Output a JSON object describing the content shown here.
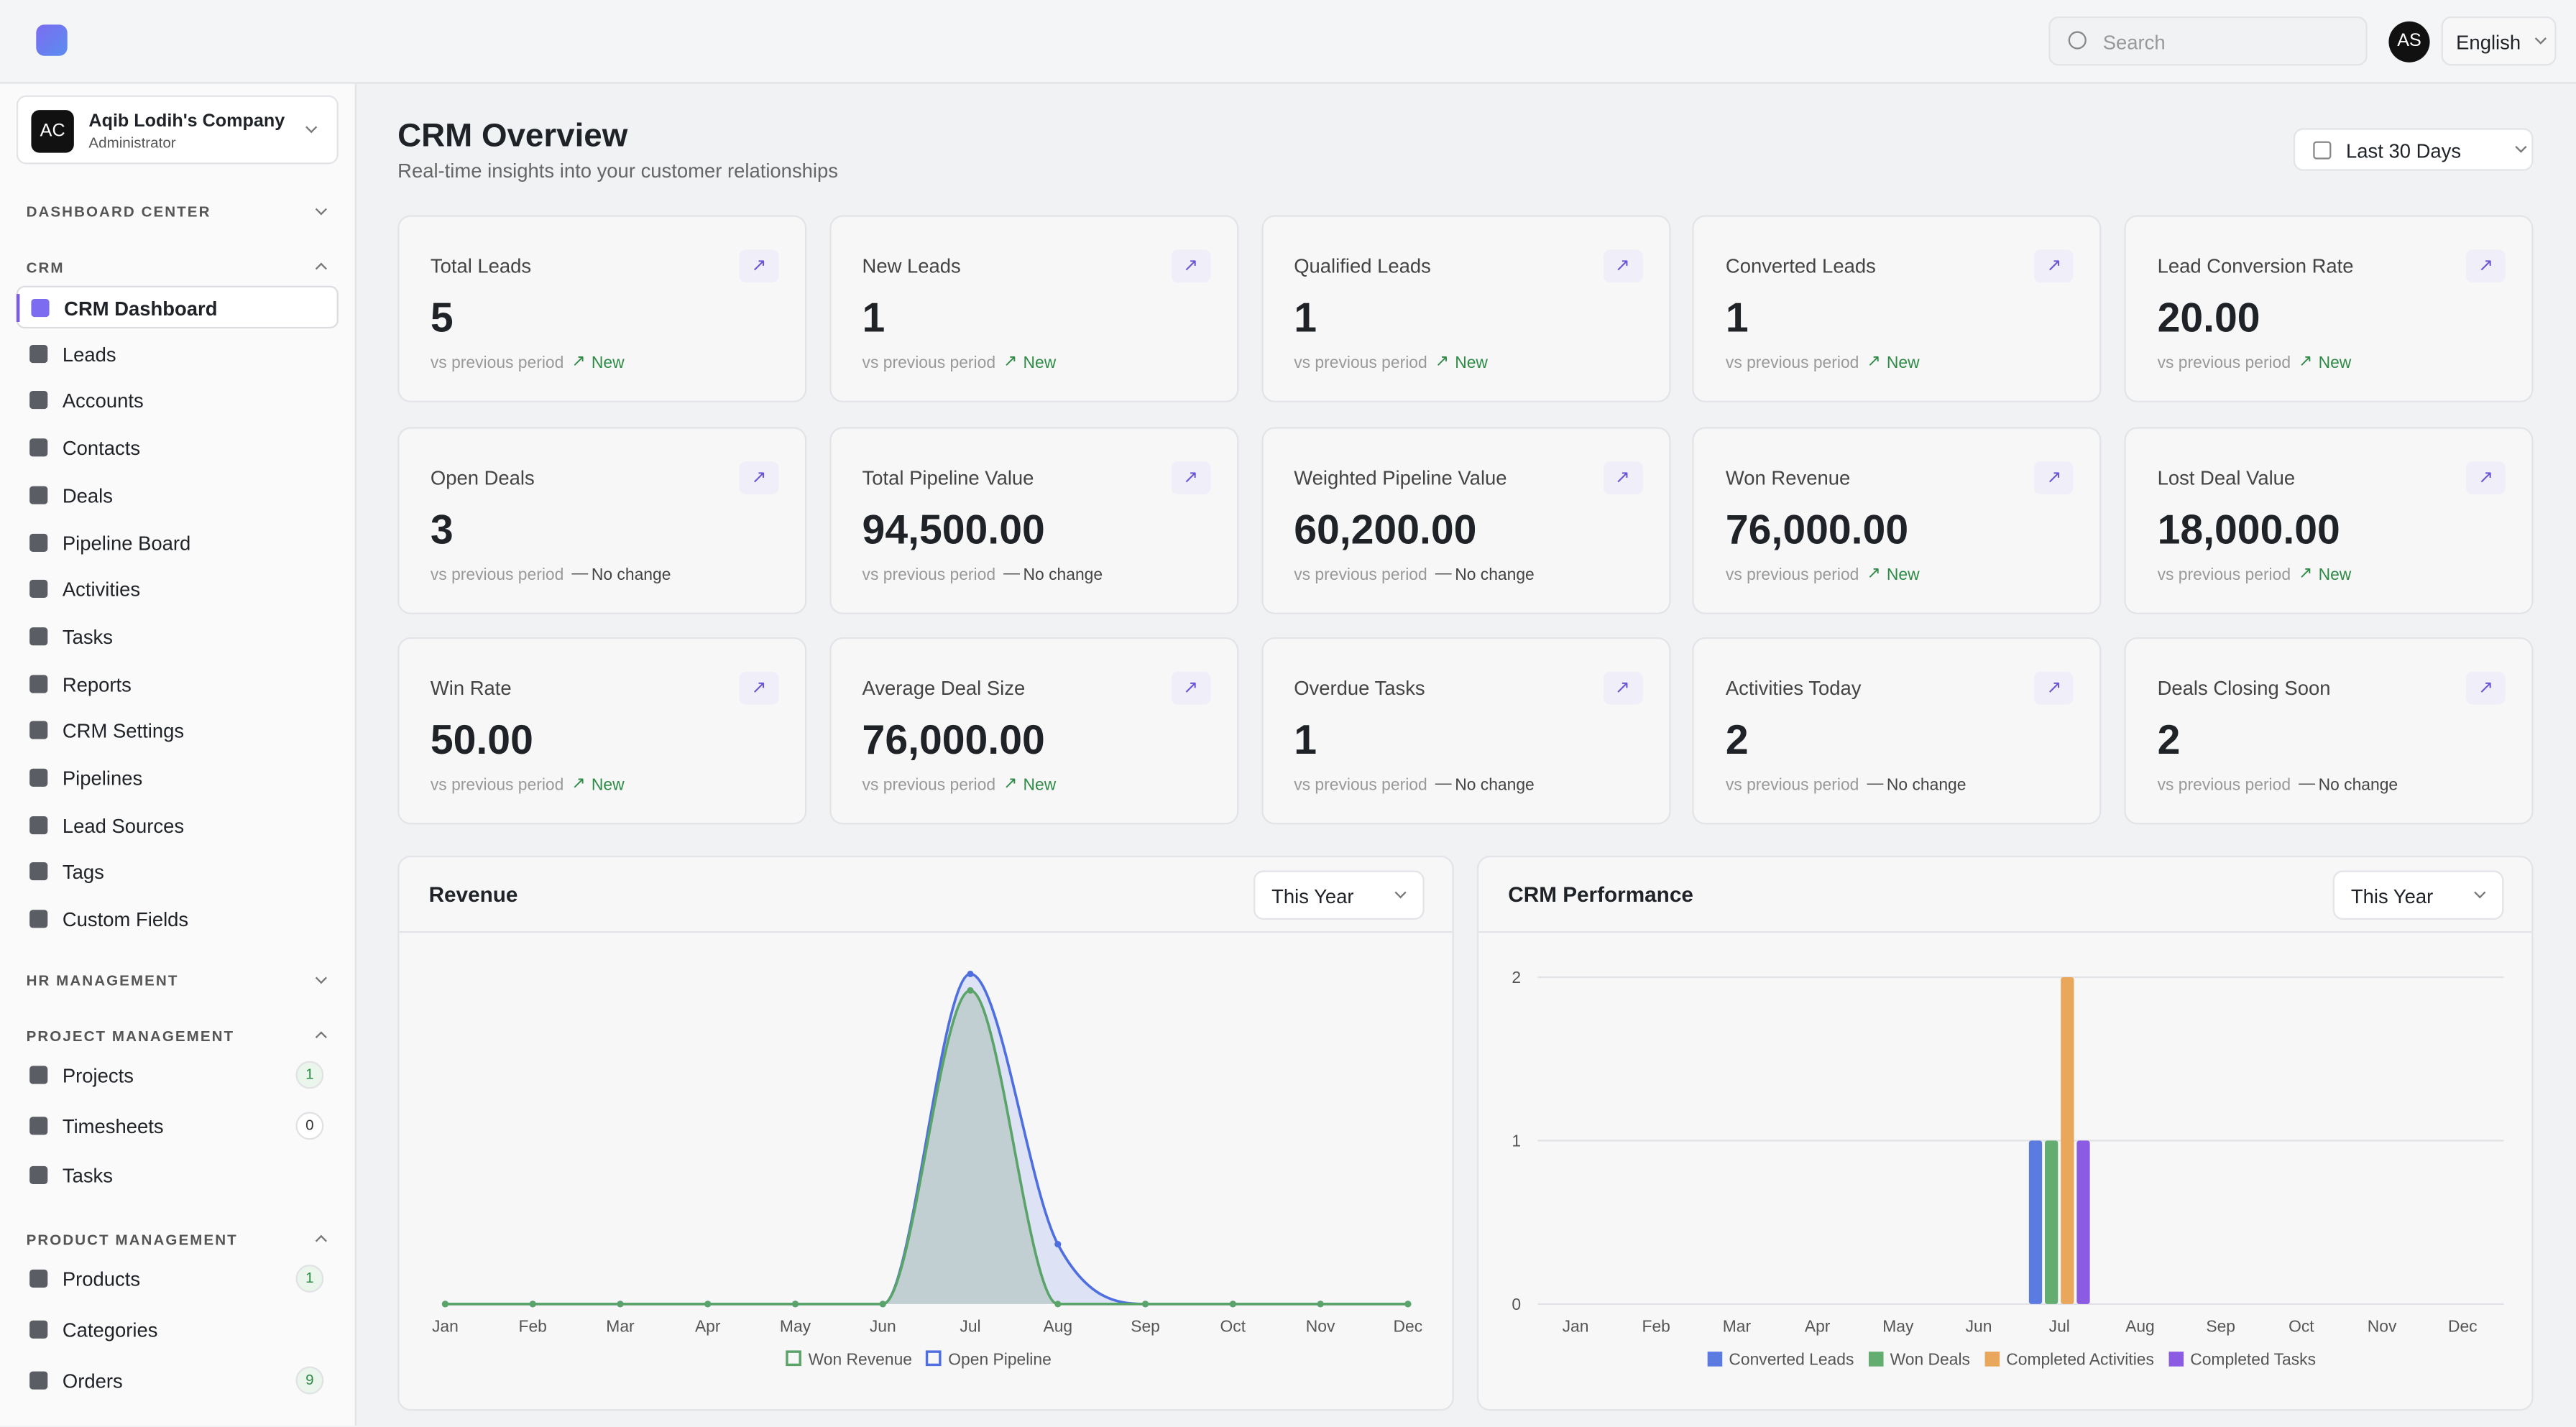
{
  "header": {
    "search_placeholder": "Search",
    "avatar": "AS",
    "language": "English"
  },
  "sidebar": {
    "company": {
      "initials": "AC",
      "name": "Aqib Lodih's Company",
      "role": "Administrator"
    },
    "sections": [
      {
        "title": "DASHBOARD CENTER",
        "items": []
      },
      {
        "title": "CRM",
        "items": [
          {
            "label": "CRM Dashboard",
            "active": true
          },
          {
            "label": "Leads"
          },
          {
            "label": "Accounts"
          },
          {
            "label": "Contacts"
          },
          {
            "label": "Deals"
          },
          {
            "label": "Pipeline Board"
          },
          {
            "label": "Activities"
          },
          {
            "label": "Tasks"
          },
          {
            "label": "Reports"
          },
          {
            "label": "CRM Settings"
          },
          {
            "label": "Pipelines"
          },
          {
            "label": "Lead Sources"
          },
          {
            "label": "Tags"
          },
          {
            "label": "Custom Fields"
          }
        ]
      },
      {
        "title": "HR MANAGEMENT",
        "items": []
      },
      {
        "title": "PROJECT MANAGEMENT",
        "items": [
          {
            "label": "Projects",
            "badge": 1
          },
          {
            "label": "Timesheets",
            "badge": 0
          },
          {
            "label": "Tasks"
          }
        ]
      },
      {
        "title": "PRODUCT MANAGEMENT",
        "items": [
          {
            "label": "Products",
            "badge": 1
          },
          {
            "label": "Categories"
          },
          {
            "label": "Orders",
            "badge": 9
          }
        ]
      }
    ]
  },
  "page": {
    "title": "CRM Overview",
    "subtitle": "Real-time insights into your customer relationships",
    "range": "Last 30 Days"
  },
  "cards": [
    {
      "label": "Total Leads",
      "value": "5",
      "note": "vs previous period",
      "change": "New",
      "trend": "up"
    },
    {
      "label": "New Leads",
      "value": "1",
      "note": "vs previous period",
      "change": "New",
      "trend": "up"
    },
    {
      "label": "Qualified Leads",
      "value": "1",
      "note": "vs previous period",
      "change": "New",
      "trend": "up"
    },
    {
      "label": "Converted Leads",
      "value": "1",
      "note": "vs previous period",
      "change": "New",
      "trend": "up"
    },
    {
      "label": "Lead Conversion Rate",
      "value": "20.00",
      "note": "vs previous period",
      "change": "New",
      "trend": "up"
    },
    {
      "label": "Open Deals",
      "value": "3",
      "note": "vs previous period",
      "change": "No change",
      "trend": "flat"
    },
    {
      "label": "Total Pipeline Value",
      "value": "94,500.00",
      "note": "vs previous period",
      "change": "No change",
      "trend": "flat"
    },
    {
      "label": "Weighted Pipeline Value",
      "value": "60,200.00",
      "note": "vs previous period",
      "change": "No change",
      "trend": "flat"
    },
    {
      "label": "Won Revenue",
      "value": "76,000.00",
      "note": "vs previous period",
      "change": "New",
      "trend": "up"
    },
    {
      "label": "Lost Deal Value",
      "value": "18,000.00",
      "note": "vs previous period",
      "change": "New",
      "trend": "up"
    },
    {
      "label": "Win Rate",
      "value": "50.00",
      "note": "vs previous period",
      "change": "New",
      "trend": "up"
    },
    {
      "label": "Average Deal Size",
      "value": "76,000.00",
      "note": "vs previous period",
      "change": "New",
      "trend": "up"
    },
    {
      "label": "Overdue Tasks",
      "value": "1",
      "note": "vs previous period",
      "change": "No change",
      "trend": "flat"
    },
    {
      "label": "Activities Today",
      "value": "2",
      "note": "vs previous period",
      "change": "No change",
      "trend": "flat"
    },
    {
      "label": "Deals Closing Soon",
      "value": "2",
      "note": "vs previous period",
      "change": "No change",
      "trend": "flat"
    }
  ],
  "chart_data": [
    {
      "type": "line",
      "title": "Revenue",
      "filter": "This Year",
      "categories": [
        "Jan",
        "Feb",
        "Mar",
        "Apr",
        "May",
        "Jun",
        "Jul",
        "Aug",
        "Sep",
        "Oct",
        "Nov",
        "Dec"
      ],
      "series": [
        {
          "name": "Won Revenue",
          "color": "#5aa469",
          "values": [
            0,
            0,
            0,
            0,
            0,
            0,
            76000,
            0,
            0,
            0,
            0,
            0
          ]
        },
        {
          "name": "Open Pipeline",
          "color": "#4f6fe0",
          "values": [
            0,
            0,
            0,
            0,
            0,
            0,
            80000,
            14500,
            0,
            0,
            0,
            0
          ]
        }
      ]
    },
    {
      "type": "bar",
      "title": "CRM Performance",
      "filter": "This Year",
      "categories": [
        "Jan",
        "Feb",
        "Mar",
        "Apr",
        "May",
        "Jun",
        "Jul",
        "Aug",
        "Sep",
        "Oct",
        "Nov",
        "Dec"
      ],
      "ylim": [
        0,
        2
      ],
      "yticks": [
        0,
        1,
        2
      ],
      "grid": true,
      "series": [
        {
          "name": "Converted Leads",
          "color": "#5b7be0",
          "values": [
            0,
            0,
            0,
            0,
            0,
            0,
            1,
            0,
            0,
            0,
            0,
            0
          ]
        },
        {
          "name": "Won Deals",
          "color": "#62ad6f",
          "values": [
            0,
            0,
            0,
            0,
            0,
            0,
            1,
            0,
            0,
            0,
            0,
            0
          ]
        },
        {
          "name": "Completed Activities",
          "color": "#e8a75a",
          "values": [
            0,
            0,
            0,
            0,
            0,
            0,
            2,
            0,
            0,
            0,
            0,
            0
          ]
        },
        {
          "name": "Completed Tasks",
          "color": "#8c5be4",
          "values": [
            0,
            0,
            0,
            0,
            0,
            0,
            1,
            0,
            0,
            0,
            0,
            0
          ]
        }
      ]
    }
  ]
}
